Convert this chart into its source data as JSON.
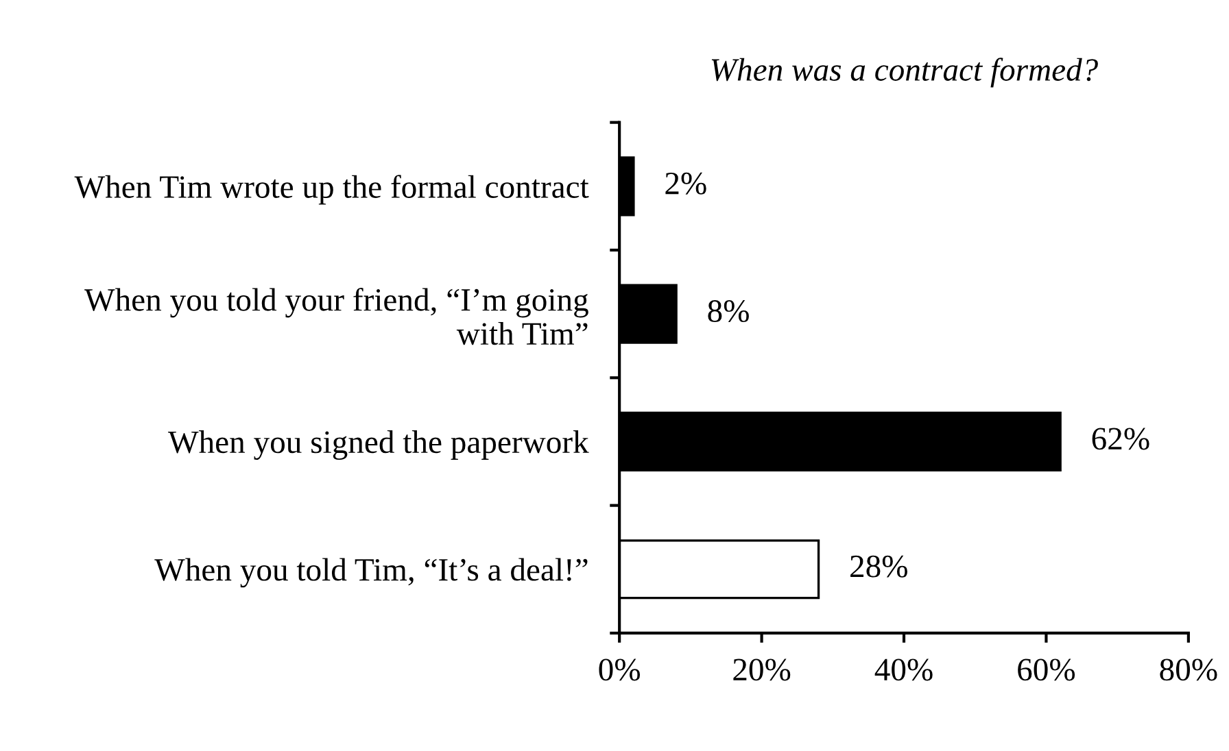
{
  "chart_data": {
    "type": "bar",
    "orientation": "horizontal",
    "title": "When was a contract formed?",
    "categories": [
      "When Tim wrote up the formal contract",
      "When you told your friend, “I’m going\nwith Tim”",
      "When you signed the paperwork",
      "When you told Tim, “It’s a deal!”"
    ],
    "values": [
      2,
      8,
      62,
      28
    ],
    "colors": [
      "#000000",
      "#000000",
      "#000000",
      "#ffffff"
    ],
    "value_labels": [
      "2%",
      "8%",
      "62%",
      "28%"
    ],
    "xlim": [
      0,
      80
    ],
    "xticks": [
      {
        "value": 0,
        "label": "0%"
      },
      {
        "value": 20,
        "label": "20%"
      },
      {
        "value": 40,
        "label": "40%"
      },
      {
        "value": 60,
        "label": "60%"
      },
      {
        "value": 80,
        "label": "80%"
      }
    ],
    "grid": false,
    "legend": false
  }
}
